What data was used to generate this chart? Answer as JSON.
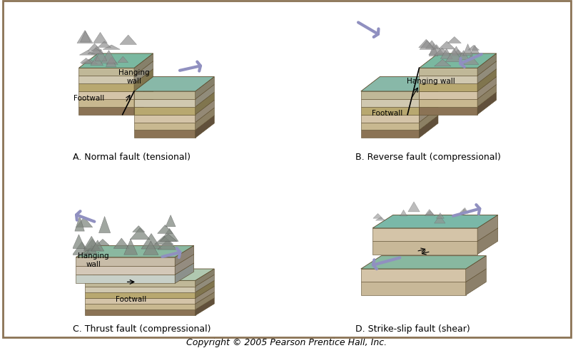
{
  "background_color": "#ffffff",
  "border_color": "#8b7355",
  "labels": {
    "A": "A. Normal fault (tensional)",
    "B": "B. Reverse fault (compressional)",
    "C": "C. Thrust fault (compressional)",
    "D": "D. Strike-slip fault (shear)"
  },
  "label_fontsize": 9,
  "copyright": "Copyright © 2005 Pearson Prentice Hall, Inc.",
  "copyright_fontsize": 9,
  "arrow_color": "#9090c0",
  "terrain_color_A": "#7ab8a0",
  "terrain_color_B": "#8ab8a8",
  "block_edge_color": "#5a4a2a",
  "layer_colors": [
    "#8b7355",
    "#c8b890",
    "#d4c4a8",
    "#b8a870",
    "#d0c8b0",
    "#c0b898"
  ]
}
